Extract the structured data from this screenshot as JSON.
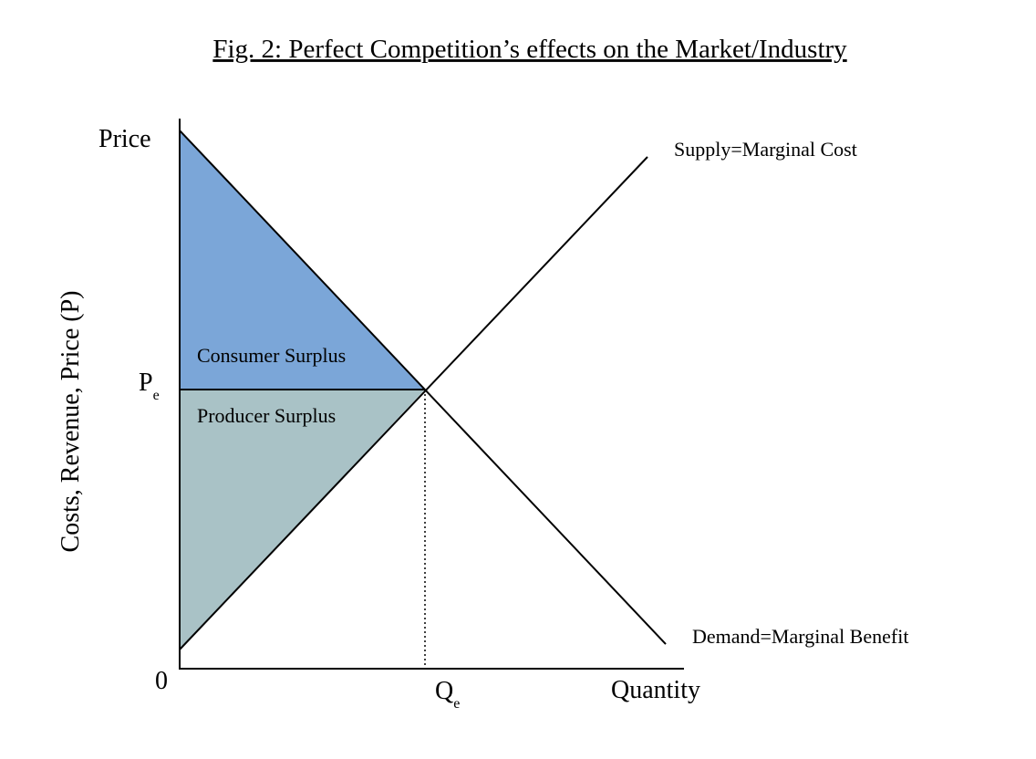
{
  "title": "Fig. 2: Perfect Competition’s effects on the Market/Industry",
  "axes": {
    "y_label": "Costs, Revenue, Price (P)",
    "y_top_label": "Price",
    "x_label": "Quantity",
    "origin_label": "0",
    "pe_main": "P",
    "pe_sub": "e",
    "qe_main": "Q",
    "qe_sub": "e"
  },
  "curves": {
    "supply_label": "Supply=Marginal Cost",
    "demand_label": "Demand=Marginal Benefit"
  },
  "areas": {
    "consumer_surplus_label": "Consumer Surplus",
    "producer_surplus_label": "Producer Surplus"
  },
  "colors": {
    "consumer_surplus": "#7ba6d8",
    "producer_surplus": "#a9c2c6",
    "lines": "#000000"
  }
}
